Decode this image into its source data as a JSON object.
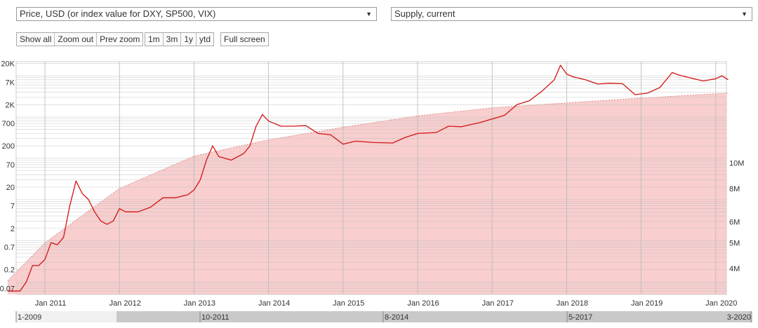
{
  "controls": {
    "left_select": {
      "value": "Price, USD (or index value for DXY, SP500, VIX)"
    },
    "right_select": {
      "value": "Supply, current"
    },
    "zoom_buttons": [
      "Show all",
      "Zoom out",
      "Prev zoom"
    ],
    "range_buttons": [
      "1m",
      "3m",
      "1y",
      "ytd"
    ],
    "fullscreen_button": "Full screen"
  },
  "colors": {
    "price_line": "#d21414",
    "supply_fill": "#f7c6c6",
    "supply_edge": "#e08a8a",
    "grid": "#bdbdbd"
  },
  "chart_data": {
    "type": "line",
    "title": "",
    "x_ticks": [
      "Jan 2011",
      "Jan 2012",
      "Jan 2013",
      "Jan 2014",
      "Jan 2015",
      "Jan 2016",
      "Jan 2017",
      "Jan 2018",
      "Jan 2019",
      "Jan 2020"
    ],
    "y_left": {
      "scale": "log",
      "ticks": [
        "0.07",
        "0.2",
        "0.7",
        "2",
        "7",
        "20",
        "70",
        "200",
        "700",
        "2K",
        "7K",
        "20K"
      ],
      "range": [
        0.05,
        22000
      ]
    },
    "y_right": {
      "scale": "log",
      "ticks": [
        "4M",
        "5M",
        "6M",
        "8M",
        "10M"
      ]
    },
    "navigator_labels": [
      "1-2009",
      "10-2011",
      "8-2014",
      "5-2017",
      "3-2020"
    ],
    "series": [
      {
        "role": "price",
        "axis": "left",
        "points": [
          [
            "2010-07",
            0.06
          ],
          [
            "2010-09",
            0.06
          ],
          [
            "2010-10",
            0.1
          ],
          [
            "2010-11",
            0.25
          ],
          [
            "2010-12",
            0.25
          ],
          [
            "2011-01",
            0.35
          ],
          [
            "2011-02",
            0.9
          ],
          [
            "2011-03",
            0.8
          ],
          [
            "2011-04",
            1.2
          ],
          [
            "2011-05",
            7
          ],
          [
            "2011-06",
            28
          ],
          [
            "2011-07",
            14
          ],
          [
            "2011-08",
            10
          ],
          [
            "2011-09",
            5
          ],
          [
            "2011-10",
            3
          ],
          [
            "2011-11",
            2.5
          ],
          [
            "2011-12",
            3
          ],
          [
            "2012-01",
            6
          ],
          [
            "2012-02",
            5
          ],
          [
            "2012-04",
            5
          ],
          [
            "2012-06",
            6.5
          ],
          [
            "2012-08",
            11
          ],
          [
            "2012-10",
            11
          ],
          [
            "2012-12",
            13
          ],
          [
            "2013-01",
            17
          ],
          [
            "2013-02",
            30
          ],
          [
            "2013-03",
            90
          ],
          [
            "2013-04",
            200
          ],
          [
            "2013-05",
            110
          ],
          [
            "2013-07",
            90
          ],
          [
            "2013-09",
            130
          ],
          [
            "2013-10",
            200
          ],
          [
            "2013-11",
            600
          ],
          [
            "2013-12",
            1150
          ],
          [
            "2014-01",
            800
          ],
          [
            "2014-03",
            600
          ],
          [
            "2014-05",
            600
          ],
          [
            "2014-07",
            620
          ],
          [
            "2014-09",
            400
          ],
          [
            "2014-11",
            370
          ],
          [
            "2015-01",
            220
          ],
          [
            "2015-03",
            260
          ],
          [
            "2015-06",
            240
          ],
          [
            "2015-09",
            235
          ],
          [
            "2015-11",
            320
          ],
          [
            "2016-01",
            400
          ],
          [
            "2016-04",
            420
          ],
          [
            "2016-06",
            600
          ],
          [
            "2016-08",
            580
          ],
          [
            "2016-11",
            730
          ],
          [
            "2017-01",
            900
          ],
          [
            "2017-03",
            1100
          ],
          [
            "2017-05",
            2000
          ],
          [
            "2017-07",
            2500
          ],
          [
            "2017-09",
            4200
          ],
          [
            "2017-11",
            8000
          ],
          [
            "2017-12",
            18000
          ],
          [
            "2018-01",
            11000
          ],
          [
            "2018-02",
            9500
          ],
          [
            "2018-04",
            8000
          ],
          [
            "2018-06",
            6300
          ],
          [
            "2018-08",
            6600
          ],
          [
            "2018-10",
            6400
          ],
          [
            "2018-12",
            3500
          ],
          [
            "2019-02",
            3800
          ],
          [
            "2019-04",
            5200
          ],
          [
            "2019-06",
            12000
          ],
          [
            "2019-07",
            10500
          ],
          [
            "2019-09",
            8800
          ],
          [
            "2019-11",
            7500
          ],
          [
            "2020-01",
            8500
          ],
          [
            "2020-02",
            10000
          ],
          [
            "2020-03",
            8000
          ]
        ]
      },
      {
        "role": "supply",
        "axis": "right",
        "points": [
          [
            "2010-07",
            3.6
          ],
          [
            "2011-01",
            5.0
          ],
          [
            "2012-01",
            8.0
          ],
          [
            "2013-01",
            10.6
          ],
          [
            "2014-01",
            12.2
          ],
          [
            "2015-01",
            13.6
          ],
          [
            "2016-01",
            15.0
          ],
          [
            "2017-01",
            16.1
          ],
          [
            "2018-01",
            16.8
          ],
          [
            "2019-01",
            17.5
          ],
          [
            "2020-03",
            18.3
          ]
        ]
      }
    ]
  }
}
